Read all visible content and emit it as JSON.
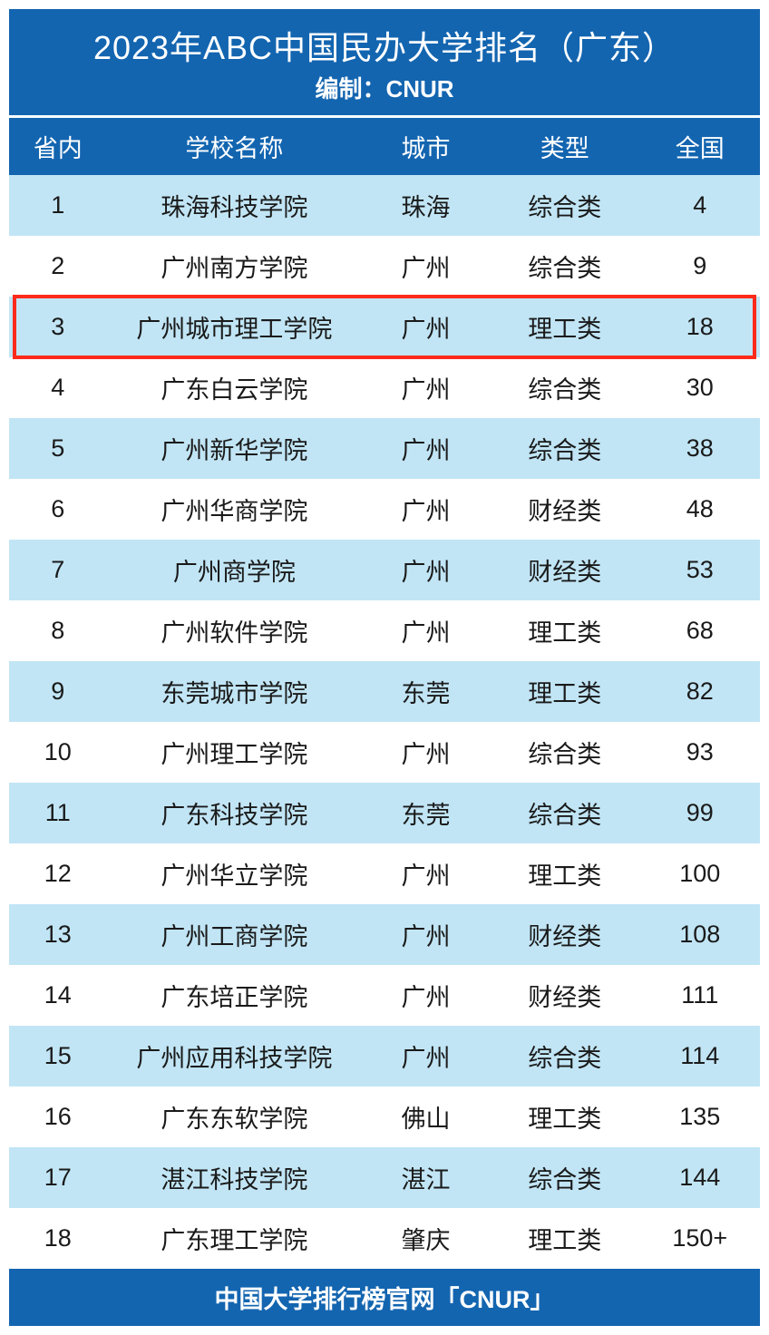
{
  "colors": {
    "header_bg": "#1365b0",
    "row_even_bg": "#c1e5f5",
    "row_odd_bg": "#ffffff",
    "text_color": "#1a1a1a",
    "highlight_color": "#ff2a1a"
  },
  "title": "2023年ABC中国民办大学排名（广东）",
  "subtitle": "编制：CNUR",
  "footer": "中国大学排行榜官网「CNUR」",
  "columns": [
    "省内",
    "学校名称",
    "城市",
    "类型",
    "全国"
  ],
  "highlight_row_index": 2,
  "rows": [
    {
      "rank": "1",
      "name": "珠海科技学院",
      "city": "珠海",
      "type": "综合类",
      "national": "4"
    },
    {
      "rank": "2",
      "name": "广州南方学院",
      "city": "广州",
      "type": "综合类",
      "national": "9"
    },
    {
      "rank": "3",
      "name": "广州城市理工学院",
      "city": "广州",
      "type": "理工类",
      "national": "18"
    },
    {
      "rank": "4",
      "name": "广东白云学院",
      "city": "广州",
      "type": "综合类",
      "national": "30"
    },
    {
      "rank": "5",
      "name": "广州新华学院",
      "city": "广州",
      "type": "综合类",
      "national": "38"
    },
    {
      "rank": "6",
      "name": "广州华商学院",
      "city": "广州",
      "type": "财经类",
      "national": "48"
    },
    {
      "rank": "7",
      "name": "广州商学院",
      "city": "广州",
      "type": "财经类",
      "national": "53"
    },
    {
      "rank": "8",
      "name": "广州软件学院",
      "city": "广州",
      "type": "理工类",
      "national": "68"
    },
    {
      "rank": "9",
      "name": "东莞城市学院",
      "city": "东莞",
      "type": "理工类",
      "national": "82"
    },
    {
      "rank": "10",
      "name": "广州理工学院",
      "city": "广州",
      "type": "综合类",
      "national": "93"
    },
    {
      "rank": "11",
      "name": "广东科技学院",
      "city": "东莞",
      "type": "综合类",
      "national": "99"
    },
    {
      "rank": "12",
      "name": "广州华立学院",
      "city": "广州",
      "type": "理工类",
      "national": "100"
    },
    {
      "rank": "13",
      "name": "广州工商学院",
      "city": "广州",
      "type": "财经类",
      "national": "108"
    },
    {
      "rank": "14",
      "name": "广东培正学院",
      "city": "广州",
      "type": "财经类",
      "national": "111"
    },
    {
      "rank": "15",
      "name": "广州应用科技学院",
      "city": "广州",
      "type": "综合类",
      "national": "114"
    },
    {
      "rank": "16",
      "name": "广东东软学院",
      "city": "佛山",
      "type": "理工类",
      "national": "135"
    },
    {
      "rank": "17",
      "name": "湛江科技学院",
      "city": "湛江",
      "type": "综合类",
      "national": "144"
    },
    {
      "rank": "18",
      "name": "广东理工学院",
      "city": "肇庆",
      "type": "理工类",
      "national": "150+"
    }
  ]
}
